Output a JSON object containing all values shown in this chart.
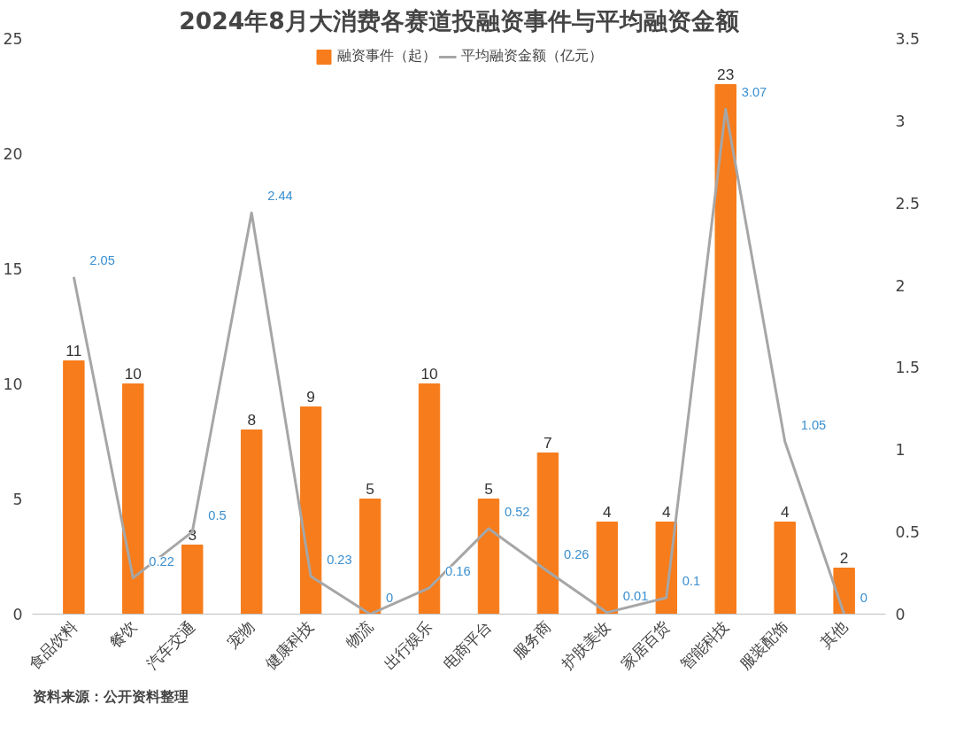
{
  "chart_data": {
    "type": "bar",
    "title": "2024年8月大消费各赛道投融资事件与平均融资金额",
    "categories": [
      "食品饮料",
      "餐饮",
      "汽车交通",
      "宠物",
      "健康科技",
      "物流",
      "出行娱乐",
      "电商平台",
      "服务商",
      "护肤美妆",
      "家居百货",
      "智能科技",
      "服装配饰",
      "其他"
    ],
    "series": [
      {
        "name": "融资事件（起）",
        "color": "#f77c1b",
        "values": [
          11,
          10,
          3,
          8,
          9,
          5,
          10,
          5,
          7,
          4,
          4,
          23,
          4,
          2
        ]
      },
      {
        "name": "平均融资金额（亿元）",
        "type": "line",
        "axis": "y2",
        "color": "#a6a6a6",
        "values": [
          2.05,
          0.22,
          0.5,
          2.44,
          0.23,
          0,
          0.16,
          0.52,
          0.26,
          0.01,
          0.1,
          3.07,
          1.05,
          0
        ]
      }
    ],
    "ylim": [
      0,
      25
    ],
    "yticks": [
      0,
      5,
      10,
      15,
      20,
      25
    ],
    "y2lim": [
      0,
      3.5
    ],
    "y2ticks": [
      0,
      0.5,
      1,
      1.5,
      2,
      2.5,
      3,
      3.5
    ],
    "data_labels": true,
    "grid": false,
    "legend": "top",
    "marker": "none",
    "annotations": [
      "资料来源：公开资料整理"
    ]
  }
}
